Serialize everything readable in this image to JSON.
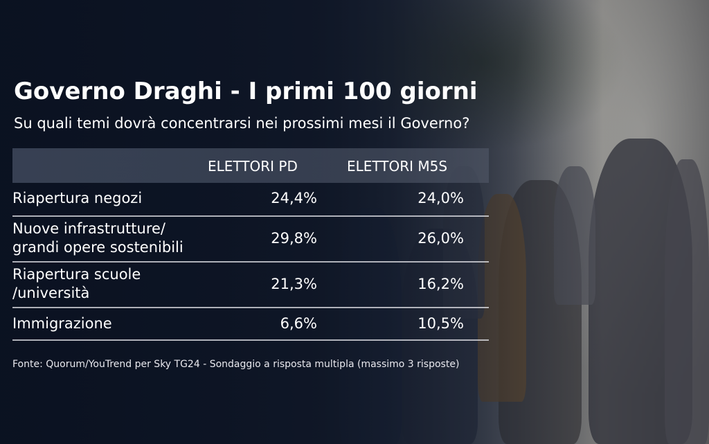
{
  "title": "Governo Draghi - I primi 100 giorni",
  "subtitle": "Su quali temi dovrà concentrarsi nei prossimi mesi il Governo?",
  "source": "Fonte: Quorum/YouTrend per Sky TG24 - Sondaggio a risposta multipla (massimo 3 risposte)",
  "chart_data": {
    "type": "table",
    "title": "Governo Draghi - I primi 100 giorni",
    "subtitle": "Su quali temi dovrà concentrarsi nei prossimi mesi il Governo?",
    "columns": [
      "ELETTORI PD",
      "ELETTORI M5S"
    ],
    "rows": [
      {
        "label_lines": [
          "Riapertura negozi"
        ],
        "values": [
          "24,4%",
          "24,0%"
        ]
      },
      {
        "label_lines": [
          "Nuove infrastrutture/",
          "grandi opere sostenibili"
        ],
        "values": [
          "29,8%",
          "26,0%"
        ]
      },
      {
        "label_lines": [
          "Riapertura scuole",
          "/università"
        ],
        "values": [
          "21,3%",
          "16,2%"
        ]
      },
      {
        "label_lines": [
          "Immigrazione"
        ],
        "values": [
          "6,6%",
          "10,5%"
        ]
      }
    ],
    "numeric": {
      "ELETTORI PD": [
        24.4,
        29.8,
        21.3,
        6.6
      ],
      "ELETTORI M5S": [
        24.0,
        26.0,
        16.2,
        10.5
      ]
    }
  }
}
